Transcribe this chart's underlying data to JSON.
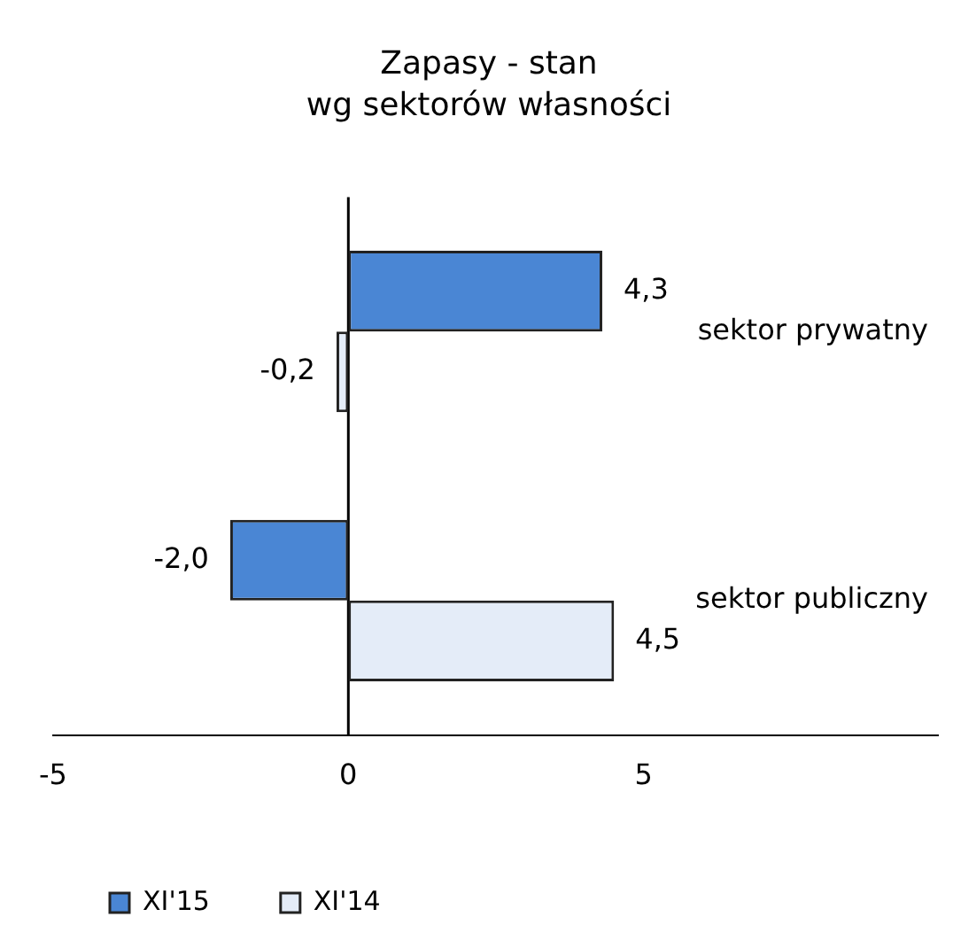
{
  "chart_data": {
    "type": "bar",
    "orientation": "horizontal",
    "title": "Zapasy - stan",
    "subtitle": "wg sektorów własności",
    "categories": [
      "sektor prywatny",
      "sektor publiczny"
    ],
    "series": [
      {
        "name": "XI'15",
        "color": "#4a86d4",
        "values": [
          4.3,
          -2.0
        ],
        "value_labels": [
          "4,3",
          "-2,0"
        ]
      },
      {
        "name": "XI'14",
        "color": "#e4ecf8",
        "values": [
          -0.2,
          4.5
        ],
        "value_labels": [
          "-0,2",
          "4,5"
        ]
      }
    ],
    "xlim": [
      -5,
      10
    ],
    "xticks": [
      -5,
      0,
      5
    ],
    "tick_labels": "x",
    "legend": "bottom",
    "ref_lines": [
      {
        "axis": "x",
        "value": 0,
        "color": "#000000"
      }
    ]
  }
}
